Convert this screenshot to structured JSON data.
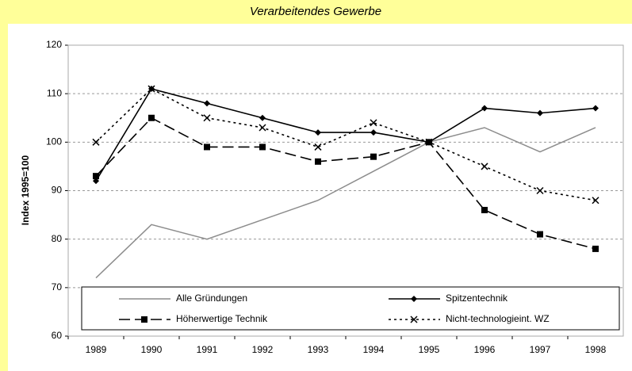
{
  "chart_data": {
    "type": "line",
    "title": "Verarbeitendes Gewerbe",
    "y_label": "Index 1995=100",
    "categories": [
      "1989",
      "1990",
      "1991",
      "1992",
      "1993",
      "1994",
      "1995",
      "1996",
      "1997",
      "1998"
    ],
    "series": [
      {
        "name": "Alle Gründungen",
        "color": "#8c8c8c",
        "dash": "solid",
        "marker": "none",
        "values": [
          72,
          83,
          80,
          84,
          88,
          94,
          100,
          103,
          98,
          103
        ]
      },
      {
        "name": "Spitzentechnik",
        "color": "#000000",
        "dash": "solid",
        "marker": "diamond",
        "values": [
          92,
          111,
          108,
          105,
          102,
          102,
          100,
          107,
          106,
          107
        ]
      },
      {
        "name": "Höherwertige Technik",
        "color": "#000000",
        "dash": "longdash",
        "marker": "square",
        "values": [
          93,
          105,
          99,
          99,
          96,
          97,
          100,
          86,
          81,
          78
        ]
      },
      {
        "name": "Nicht-technologieint. WZ",
        "color": "#000000",
        "dash": "dotted",
        "marker": "x",
        "values": [
          100,
          111,
          105,
          103,
          99,
          104,
          100,
          95,
          90,
          88
        ]
      }
    ],
    "ylim": [
      60,
      120
    ],
    "yticks": [
      60,
      70,
      80,
      90,
      100,
      110,
      120
    ],
    "grid": true
  }
}
